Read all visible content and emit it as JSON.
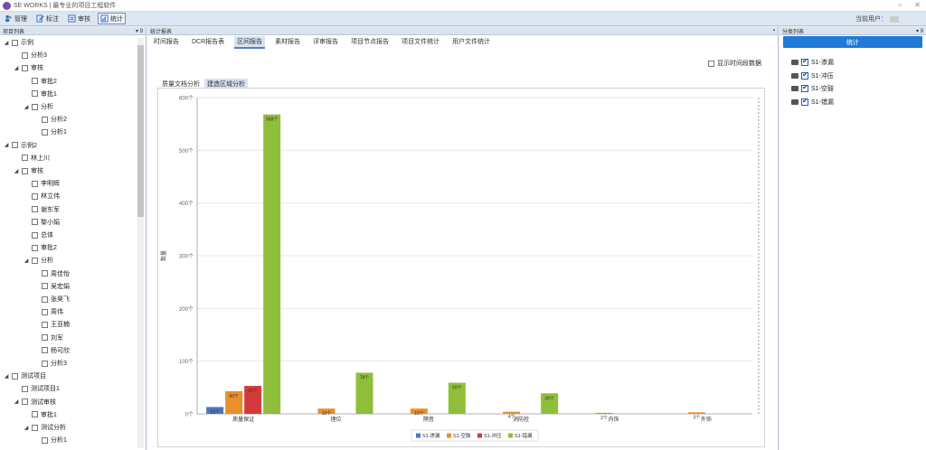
{
  "window": {
    "title": "SE WORKS | 最专业的项目工程软件"
  },
  "toolbar": {
    "items": [
      {
        "label": "管理"
      },
      {
        "label": "标注"
      },
      {
        "label": "审核"
      },
      {
        "label": "统计"
      }
    ],
    "user_label": "当前用户："
  },
  "left_panel": {
    "title": "项目列表",
    "pin": "▾ 9",
    "tree": [
      {
        "label": "示例",
        "level": 0,
        "arrow": "◢"
      },
      {
        "label": "分析3",
        "level": 1,
        "arrow": ""
      },
      {
        "label": "审核",
        "level": 1,
        "arrow": "◢"
      },
      {
        "label": "审批2",
        "level": 2,
        "arrow": ""
      },
      {
        "label": "审批1",
        "level": 2,
        "arrow": ""
      },
      {
        "label": "分析",
        "level": 2,
        "arrow": "◢"
      },
      {
        "label": "分析2",
        "level": 3,
        "arrow": ""
      },
      {
        "label": "分析1",
        "level": 3,
        "arrow": ""
      },
      {
        "label": "示例2",
        "level": 0,
        "arrow": "◢"
      },
      {
        "label": "林上川",
        "level": 1,
        "arrow": ""
      },
      {
        "label": "审核",
        "level": 1,
        "arrow": "◢"
      },
      {
        "label": "李明辉",
        "level": 2,
        "arrow": ""
      },
      {
        "label": "林立伟",
        "level": 2,
        "arrow": ""
      },
      {
        "label": "谢东军",
        "level": 2,
        "arrow": ""
      },
      {
        "label": "黎小娟",
        "level": 2,
        "arrow": ""
      },
      {
        "label": "总体",
        "level": 2,
        "arrow": ""
      },
      {
        "label": "审批2",
        "level": 2,
        "arrow": ""
      },
      {
        "label": "分析",
        "level": 2,
        "arrow": "◢"
      },
      {
        "label": "周佳怡",
        "level": 3,
        "arrow": ""
      },
      {
        "label": "吴宏娟",
        "level": 3,
        "arrow": ""
      },
      {
        "label": "张昊飞",
        "level": 3,
        "arrow": ""
      },
      {
        "label": "周伟",
        "level": 3,
        "arrow": ""
      },
      {
        "label": "王亚楠",
        "level": 3,
        "arrow": ""
      },
      {
        "label": "刘军",
        "level": 3,
        "arrow": ""
      },
      {
        "label": "杨可欣",
        "level": 3,
        "arrow": ""
      },
      {
        "label": "分析3",
        "level": 3,
        "arrow": ""
      },
      {
        "label": "测试项目",
        "level": 0,
        "arrow": "◢"
      },
      {
        "label": "测试项目1",
        "level": 1,
        "arrow": ""
      },
      {
        "label": "测试审核",
        "level": 1,
        "arrow": "◢"
      },
      {
        "label": "审批1",
        "level": 2,
        "arrow": ""
      },
      {
        "label": "测试分析",
        "level": 2,
        "arrow": "◢"
      },
      {
        "label": "分析1",
        "level": 3,
        "arrow": ""
      }
    ]
  },
  "center_panel": {
    "title": "统计报表",
    "tabs": [
      "时间报告",
      "DCR报告表",
      "区间报告",
      "素材报告",
      "评审报告",
      "项目节点报告",
      "项目文件统计",
      "用户文件统计"
    ],
    "active_tab": 2,
    "show_time_label": "显示时间段数据",
    "subtabs": [
      "质量文档分析",
      "建造区域分析"
    ],
    "active_subtab": 1
  },
  "chart_data": {
    "type": "bar",
    "title": "",
    "xlabel": "",
    "ylabel": "数量",
    "ylim": [
      0,
      600
    ],
    "yticks": [
      "0个",
      "100个",
      "200个",
      "300个",
      "400个",
      "500个",
      "600个"
    ],
    "categories": [
      "质量保证",
      "理位",
      "隔音",
      "消防栓",
      "内饰",
      "外饰"
    ],
    "series": [
      {
        "name": "S1-渗漏",
        "color": "#4a78c2",
        "values": [
          13,
          0,
          0,
          0,
          0,
          0
        ]
      },
      {
        "name": "S1-空鼓",
        "color": "#e8902a",
        "values": [
          43,
          10,
          10,
          4,
          2,
          3
        ]
      },
      {
        "name": "S1-冲压",
        "color": "#d23b3b",
        "values": [
          53,
          0,
          0,
          0,
          0,
          0
        ]
      },
      {
        "name": "S1-错漏",
        "color": "#8fbf3a",
        "values": [
          568,
          78,
          59,
          39,
          0,
          0
        ]
      }
    ],
    "legend_position": "bottom-center"
  },
  "right_panel": {
    "title": "分类列表",
    "pin": "▾ 9",
    "stat_button": "统计",
    "items": [
      {
        "label": "S1-渗漏"
      },
      {
        "label": "S1-冲压"
      },
      {
        "label": "S1-空鼓"
      },
      {
        "label": "S1-错漏"
      }
    ]
  }
}
